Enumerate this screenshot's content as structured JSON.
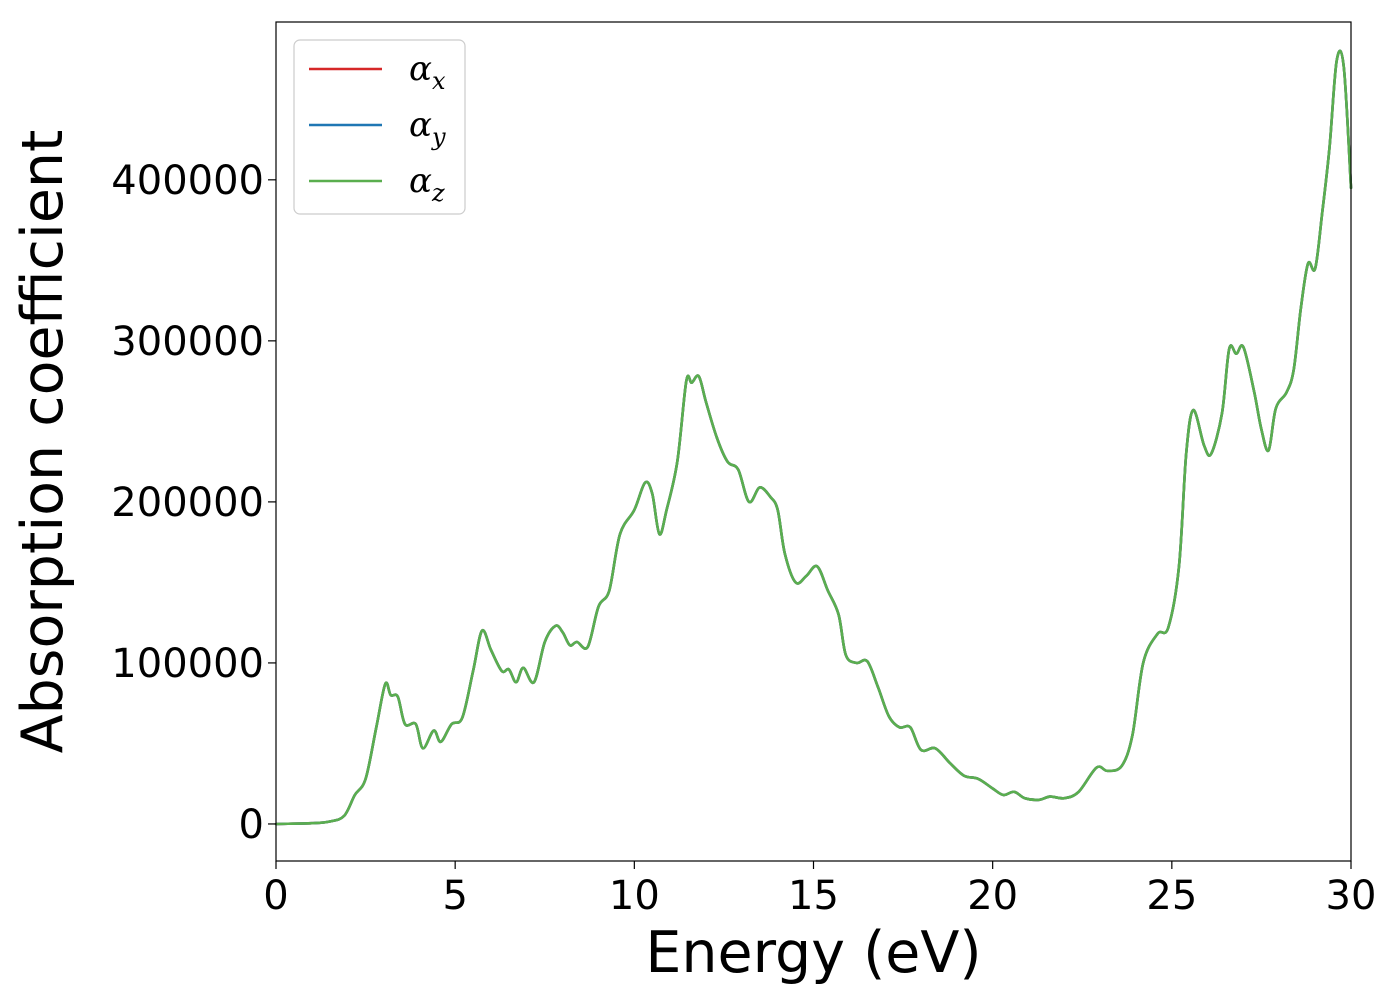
{
  "chart_data": {
    "type": "line",
    "title": "",
    "xlabel": "Energy (eV)",
    "ylabel": "Absorption coefficient",
    "xlim": [
      0,
      30
    ],
    "ylim": [
      -23000,
      498000
    ],
    "xticks": [
      "0",
      "5",
      "10",
      "15",
      "20",
      "25",
      "30"
    ],
    "yticks": [
      "0",
      "100000",
      "200000",
      "300000",
      "400000"
    ],
    "grid": false,
    "legend_position": "top-left",
    "series": [
      {
        "name": "α",
        "subscript": "x",
        "color": "#d62728",
        "x": [
          0,
          1,
          1.5,
          1.9,
          2.2,
          2.5,
          2.8,
          3.05,
          3.2,
          3.4,
          3.6,
          3.9,
          4.1,
          4.4,
          4.6,
          4.9,
          5.2,
          5.5,
          5.75,
          6.0,
          6.3,
          6.5,
          6.7,
          6.9,
          7.2,
          7.5,
          7.8,
          8.0,
          8.2,
          8.4,
          8.7,
          9.0,
          9.3,
          9.6,
          10.0,
          10.3,
          10.5,
          10.7,
          10.9,
          11.2,
          11.45,
          11.6,
          11.8,
          12.0,
          12.3,
          12.6,
          12.9,
          13.2,
          13.5,
          13.8,
          14.0,
          14.2,
          14.5,
          14.8,
          15.1,
          15.4,
          15.7,
          15.9,
          16.2,
          16.5,
          16.8,
          17.1,
          17.4,
          17.7,
          18.0,
          18.4,
          18.8,
          19.2,
          19.6,
          20.0,
          20.3,
          20.6,
          20.9,
          21.3,
          21.6,
          22.0,
          22.4,
          22.9,
          23.2,
          23.6,
          23.9,
          24.2,
          24.6,
          24.9,
          25.2,
          25.4,
          25.6,
          25.9,
          26.1,
          26.4,
          26.6,
          26.8,
          27.0,
          27.3,
          27.5,
          27.7,
          27.9,
          28.2,
          28.4,
          28.6,
          28.8,
          29.0,
          29.2,
          29.4,
          29.6,
          29.8,
          30.0
        ],
        "values": [
          0,
          500,
          1500,
          5000,
          18000,
          28000,
          60000,
          87000,
          80000,
          79000,
          62000,
          62000,
          47000,
          58000,
          51000,
          62000,
          66000,
          95000,
          120000,
          108000,
          95000,
          96000,
          88000,
          97000,
          88000,
          113000,
          123000,
          119000,
          111000,
          113000,
          110000,
          135000,
          145000,
          180000,
          195000,
          212000,
          205000,
          180000,
          195000,
          225000,
          275000,
          274000,
          278000,
          262000,
          240000,
          225000,
          220000,
          200000,
          209000,
          203000,
          195000,
          168000,
          150000,
          154000,
          160000,
          145000,
          130000,
          105000,
          100000,
          101000,
          85000,
          67000,
          60000,
          60000,
          46000,
          47000,
          38000,
          30000,
          28000,
          22000,
          18000,
          20000,
          16000,
          15000,
          17000,
          16000,
          20000,
          35000,
          33000,
          36000,
          55000,
          100000,
          118000,
          122000,
          160000,
          230000,
          257000,
          235000,
          230000,
          255000,
          295000,
          292000,
          296000,
          268000,
          245000,
          232000,
          258000,
          268000,
          282000,
          320000,
          348000,
          345000,
          380000,
          420000,
          474000,
          470000,
          395000
        ]
      },
      {
        "name": "α",
        "subscript": "y",
        "color": "#1f77b4",
        "x": [
          0,
          1,
          1.5,
          1.9,
          2.2,
          2.5,
          2.8,
          3.05,
          3.2,
          3.4,
          3.6,
          3.9,
          4.1,
          4.4,
          4.6,
          4.9,
          5.2,
          5.5,
          5.75,
          6.0,
          6.3,
          6.5,
          6.7,
          6.9,
          7.2,
          7.5,
          7.8,
          8.0,
          8.2,
          8.4,
          8.7,
          9.0,
          9.3,
          9.6,
          10.0,
          10.3,
          10.5,
          10.7,
          10.9,
          11.2,
          11.45,
          11.6,
          11.8,
          12.0,
          12.3,
          12.6,
          12.9,
          13.2,
          13.5,
          13.8,
          14.0,
          14.2,
          14.5,
          14.8,
          15.1,
          15.4,
          15.7,
          15.9,
          16.2,
          16.5,
          16.8,
          17.1,
          17.4,
          17.7,
          18.0,
          18.4,
          18.8,
          19.2,
          19.6,
          20.0,
          20.3,
          20.6,
          20.9,
          21.3,
          21.6,
          22.0,
          22.4,
          22.9,
          23.2,
          23.6,
          23.9,
          24.2,
          24.6,
          24.9,
          25.2,
          25.4,
          25.6,
          25.9,
          26.1,
          26.4,
          26.6,
          26.8,
          27.0,
          27.3,
          27.5,
          27.7,
          27.9,
          28.2,
          28.4,
          28.6,
          28.8,
          29.0,
          29.2,
          29.4,
          29.6,
          29.8,
          30.0
        ],
        "values": [
          0,
          500,
          1500,
          5000,
          18000,
          28000,
          60000,
          87000,
          80000,
          79000,
          62000,
          62000,
          47000,
          58000,
          51000,
          62000,
          66000,
          95000,
          120000,
          108000,
          95000,
          96000,
          88000,
          97000,
          88000,
          113000,
          123000,
          119000,
          111000,
          113000,
          110000,
          135000,
          145000,
          180000,
          195000,
          212000,
          205000,
          180000,
          195000,
          225000,
          275000,
          274000,
          278000,
          262000,
          240000,
          225000,
          220000,
          200000,
          209000,
          203000,
          195000,
          168000,
          150000,
          154000,
          160000,
          145000,
          130000,
          105000,
          100000,
          101000,
          85000,
          67000,
          60000,
          60000,
          46000,
          47000,
          38000,
          30000,
          28000,
          22000,
          18000,
          20000,
          16000,
          15000,
          17000,
          16000,
          20000,
          35000,
          33000,
          36000,
          55000,
          100000,
          118000,
          122000,
          160000,
          230000,
          257000,
          235000,
          230000,
          255000,
          295000,
          292000,
          296000,
          268000,
          245000,
          232000,
          258000,
          268000,
          282000,
          320000,
          348000,
          345000,
          380000,
          420000,
          474000,
          470000,
          395000
        ]
      },
      {
        "name": "α",
        "subscript": "z",
        "color": "#5aae4f",
        "x": [
          0,
          1,
          1.5,
          1.9,
          2.2,
          2.5,
          2.8,
          3.05,
          3.2,
          3.4,
          3.6,
          3.9,
          4.1,
          4.4,
          4.6,
          4.9,
          5.2,
          5.5,
          5.75,
          6.0,
          6.3,
          6.5,
          6.7,
          6.9,
          7.2,
          7.5,
          7.8,
          8.0,
          8.2,
          8.4,
          8.7,
          9.0,
          9.3,
          9.6,
          10.0,
          10.3,
          10.5,
          10.7,
          10.9,
          11.2,
          11.45,
          11.6,
          11.8,
          12.0,
          12.3,
          12.6,
          12.9,
          13.2,
          13.5,
          13.8,
          14.0,
          14.2,
          14.5,
          14.8,
          15.1,
          15.4,
          15.7,
          15.9,
          16.2,
          16.5,
          16.8,
          17.1,
          17.4,
          17.7,
          18.0,
          18.4,
          18.8,
          19.2,
          19.6,
          20.0,
          20.3,
          20.6,
          20.9,
          21.3,
          21.6,
          22.0,
          22.4,
          22.9,
          23.2,
          23.6,
          23.9,
          24.2,
          24.6,
          24.9,
          25.2,
          25.4,
          25.6,
          25.9,
          26.1,
          26.4,
          26.6,
          26.8,
          27.0,
          27.3,
          27.5,
          27.7,
          27.9,
          28.2,
          28.4,
          28.6,
          28.8,
          29.0,
          29.2,
          29.4,
          29.6,
          29.8,
          30.0
        ],
        "values": [
          0,
          500,
          1500,
          5000,
          18000,
          28000,
          60000,
          87000,
          80000,
          79000,
          62000,
          62000,
          47000,
          58000,
          51000,
          62000,
          66000,
          95000,
          120000,
          108000,
          95000,
          96000,
          88000,
          97000,
          88000,
          113000,
          123000,
          119000,
          111000,
          113000,
          110000,
          135000,
          145000,
          180000,
          195000,
          212000,
          205000,
          180000,
          195000,
          225000,
          275000,
          274000,
          278000,
          262000,
          240000,
          225000,
          220000,
          200000,
          209000,
          203000,
          195000,
          168000,
          150000,
          154000,
          160000,
          145000,
          130000,
          105000,
          100000,
          101000,
          85000,
          67000,
          60000,
          60000,
          46000,
          47000,
          38000,
          30000,
          28000,
          22000,
          18000,
          20000,
          16000,
          15000,
          17000,
          16000,
          20000,
          35000,
          33000,
          36000,
          55000,
          100000,
          118000,
          122000,
          160000,
          230000,
          257000,
          235000,
          230000,
          255000,
          295000,
          292000,
          296000,
          268000,
          245000,
          232000,
          258000,
          268000,
          282000,
          320000,
          348000,
          345000,
          380000,
          420000,
          474000,
          470000,
          395000
        ]
      }
    ]
  }
}
